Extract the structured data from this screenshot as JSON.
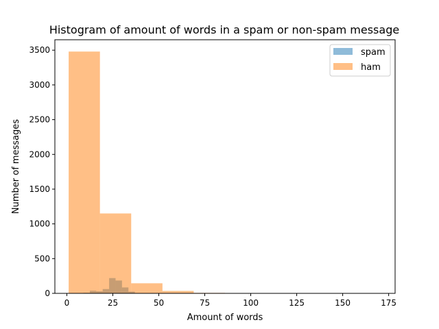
{
  "chart_data": {
    "type": "histogram",
    "title": "Histogram of amount of words in a spam or non-spam message",
    "xlabel": "Amount of words",
    "ylabel": "Number of messages",
    "xlim": [
      -6.5,
      178.5
    ],
    "ylim": [
      0,
      3650
    ],
    "xticks": [
      0,
      25,
      50,
      75,
      100,
      125,
      150,
      175
    ],
    "yticks": [
      0,
      500,
      1000,
      1500,
      2000,
      2500,
      3000,
      3500
    ],
    "legend_position": "upper right",
    "series": [
      {
        "name": "spam",
        "color": "#1f77b4",
        "alpha": 0.5,
        "bins": [
          {
            "x0": 2,
            "x1": 5.5,
            "count": 3
          },
          {
            "x0": 5.5,
            "x1": 9,
            "count": 4
          },
          {
            "x0": 9,
            "x1": 12.5,
            "count": 8
          },
          {
            "x0": 12.5,
            "x1": 16,
            "count": 38
          },
          {
            "x0": 16,
            "x1": 19.5,
            "count": 30
          },
          {
            "x0": 19.5,
            "x1": 23,
            "count": 62
          },
          {
            "x0": 23,
            "x1": 26.5,
            "count": 220
          },
          {
            "x0": 26.5,
            "x1": 30,
            "count": 185
          },
          {
            "x0": 30,
            "x1": 33.5,
            "count": 85
          },
          {
            "x0": 33.5,
            "x1": 37,
            "count": 25
          }
        ]
      },
      {
        "name": "ham",
        "color": "#ff7f0e",
        "alpha": 0.5,
        "bins": [
          {
            "x0": 1,
            "x1": 18,
            "count": 3480
          },
          {
            "x0": 18,
            "x1": 35,
            "count": 1150
          },
          {
            "x0": 35,
            "x1": 52,
            "count": 145
          },
          {
            "x0": 52,
            "x1": 69,
            "count": 35
          },
          {
            "x0": 69,
            "x1": 86,
            "count": 7
          },
          {
            "x0": 86,
            "x1": 103,
            "count": 2
          },
          {
            "x0": 103,
            "x1": 120,
            "count": 1
          },
          {
            "x0": 120,
            "x1": 137,
            "count": 1
          },
          {
            "x0": 137,
            "x1": 154,
            "count": 0
          },
          {
            "x0": 154,
            "x1": 171,
            "count": 1
          }
        ]
      }
    ]
  }
}
